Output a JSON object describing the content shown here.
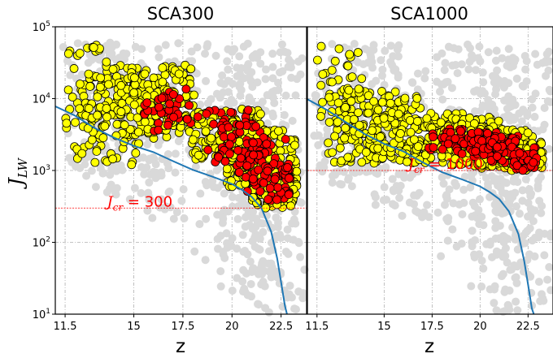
{
  "chart_data": [
    {
      "type": "scatter",
      "title": "SCA300",
      "xlabel": "z",
      "ylabel": "J_LW",
      "ylabel_main": "J",
      "ylabel_sub": "LW",
      "xlim": [
        11,
        23.8
      ],
      "ylim": [
        10,
        100000
      ],
      "yscale": "log",
      "xticks": [
        11.5,
        15,
        17.5,
        20,
        22.5
      ],
      "xtick_labels": [
        "11.5",
        "15",
        "17.5",
        "20",
        "22.5"
      ],
      "yticks": [
        10,
        100,
        1000,
        10000,
        100000
      ],
      "ytick_labels": [
        [
          "10",
          "1"
        ],
        [
          "10",
          "2"
        ],
        [
          "10",
          "3"
        ],
        [
          "10",
          "4"
        ],
        [
          "10",
          "5"
        ]
      ],
      "grid": true,
      "threshold": {
        "value": 300,
        "label_main": "J",
        "label_sub": "cr",
        "label_rest": " = 300",
        "color": "#ff0000"
      },
      "curve": {
        "color": "#1f77b4",
        "x": [
          11.0,
          12.0,
          13.0,
          14.0,
          15.0,
          16.0,
          17.0,
          18.0,
          19.0,
          20.0,
          20.5,
          21.0,
          21.5,
          22.0,
          22.3,
          22.5,
          22.7,
          22.8
        ],
        "y": [
          7800,
          5800,
          3900,
          2850,
          2200,
          1800,
          1350,
          1020,
          820,
          650,
          540,
          430,
          300,
          140,
          60,
          28,
          13,
          10
        ]
      },
      "series": [
        {
          "name": "",
          "role": "all halos",
          "color": "#d9d9d9",
          "x_range": [
            11.3,
            23.8
          ],
          "y_range": [
            10,
            60000
          ],
          "clusters": [
            [
              13.0,
              12000,
              0.18,
              1.35,
              3
            ],
            [
              14.5,
              10000,
              0.18,
              1.5,
              3
            ],
            [
              15.5,
              12000,
              0.18,
              1.6,
              2
            ],
            [
              17.0,
              7000,
              0.18,
              1.6,
              3
            ],
            [
              19.5,
              3500,
              0.2,
              1.8,
              4
            ],
            [
              21.0,
              1500,
              0.2,
              1.9,
              5
            ],
            [
              22.3,
              600,
              0.22,
              1.9,
              5
            ],
            [
              23.2,
              200,
              0.3,
              1.6,
              3
            ],
            [
              12.0,
              25000,
              0.3,
              1.4,
              4
            ]
          ]
        },
        {
          "name": "",
          "role": "selected halos",
          "color": "#ffff00",
          "x_range": [
            11.5,
            23.3
          ],
          "y_range": [
            300,
            60000
          ],
          "clusters": [
            [
              13.5,
              5000,
              0.2,
              0.62,
              2
            ],
            [
              14.5,
              7000,
              0.22,
              0.62,
              2
            ],
            [
              15.5,
              9000,
              0.22,
              0.5,
              2
            ],
            [
              16.5,
              10000,
              0.2,
              0.5,
              3
            ],
            [
              19.7,
              3200,
              0.22,
              0.35,
              4
            ],
            [
              21.5,
              1500,
              0.22,
              0.4,
              5
            ],
            [
              22.3,
              600,
              0.16,
              0.4,
              6
            ],
            [
              12.3,
              15000,
              0.18,
              0.6,
              2
            ]
          ]
        },
        {
          "name": "",
          "role": "atomic-cooling halos",
          "color": "#ff0000",
          "x_range": [
            15.5,
            23.0
          ],
          "y_range": [
            350,
            15000
          ],
          "clusters": [
            [
              16.5,
              8000,
              0.2,
              0.25,
              2
            ],
            [
              17.2,
              6000,
              0.15,
              0.3,
              1
            ],
            [
              19.8,
              3500,
              0.18,
              0.3,
              2
            ],
            [
              20.8,
              2200,
              0.18,
              0.3,
              3
            ],
            [
              21.8,
              1100,
              0.18,
              0.4,
              3
            ],
            [
              22.6,
              600,
              0.12,
              0.35,
              3
            ],
            [
              20.2,
              1200,
              0.15,
              0.3,
              1
            ]
          ]
        }
      ]
    },
    {
      "type": "scatter",
      "title": "SCA1000",
      "xlabel": "z",
      "ylabel": "",
      "xlim": [
        11,
        23.8
      ],
      "ylim": [
        10,
        100000
      ],
      "yscale": "log",
      "xticks": [
        11.5,
        15,
        17.5,
        20,
        22.5
      ],
      "xtick_labels": [
        "11.5",
        "15",
        "17.5",
        "20",
        "22.5"
      ],
      "grid": true,
      "threshold": {
        "value": 1000,
        "label_main": "J",
        "label_sub": "cr",
        "label_rest": " = 1000",
        "color": "#ff0000"
      },
      "curve": {
        "color": "#1f77b4",
        "x": [
          11.0,
          12.0,
          13.0,
          14.0,
          15.0,
          16.0,
          17.0,
          18.0,
          19.0,
          20.0,
          20.5,
          21.0,
          21.5,
          22.0,
          22.3,
          22.5,
          22.7,
          22.8
        ],
        "y": [
          9800,
          7000,
          4700,
          3200,
          2350,
          1850,
          1300,
          950,
          760,
          600,
          500,
          400,
          270,
          130,
          55,
          26,
          12,
          10
        ]
      },
      "series": [
        {
          "name": "",
          "role": "all halos",
          "color": "#d9d9d9",
          "x_range": [
            11.3,
            23.8
          ],
          "y_range": [
            10,
            60000
          ],
          "clusters": [
            [
              13.0,
              12000,
              0.18,
              1.35,
              3
            ],
            [
              14.5,
              10000,
              0.18,
              1.5,
              3
            ],
            [
              15.5,
              12000,
              0.18,
              1.6,
              2
            ],
            [
              17.0,
              7000,
              0.18,
              1.6,
              3
            ],
            [
              19.5,
              3500,
              0.2,
              1.8,
              4
            ],
            [
              21.0,
              1500,
              0.2,
              1.9,
              5
            ],
            [
              22.3,
              600,
              0.22,
              1.9,
              5
            ],
            [
              23.2,
              200,
              0.3,
              1.6,
              3
            ],
            [
              12.0,
              25000,
              0.3,
              1.4,
              4
            ]
          ]
        },
        {
          "name": "",
          "role": "selected halos",
          "color": "#ffff00",
          "x_range": [
            11.5,
            23.3
          ],
          "y_range": [
            1000,
            70000
          ],
          "clusters": [
            [
              13.5,
              4000,
              0.18,
              0.5,
              2
            ],
            [
              14.5,
              4500,
              0.2,
              0.5,
              3
            ],
            [
              15.5,
              4000,
              0.18,
              0.45,
              2
            ],
            [
              17.5,
              2800,
              0.22,
              0.35,
              3
            ],
            [
              19.5,
              2500,
              0.2,
              0.35,
              4
            ],
            [
              21.3,
              1900,
              0.18,
              0.3,
              4
            ],
            [
              22.5,
              1500,
              0.12,
              0.25,
              4
            ],
            [
              12.3,
              15000,
              0.2,
              0.6,
              2
            ]
          ]
        },
        {
          "name": "",
          "role": "atomic-cooling halos",
          "color": "#ff0000",
          "x_range": [
            17.3,
            23.0
          ],
          "y_range": [
            1000,
            6000
          ],
          "clusters": [
            [
              18.3,
              2700,
              0.18,
              0.18,
              2
            ],
            [
              19.6,
              2400,
              0.16,
              0.2,
              3
            ],
            [
              20.8,
              2200,
              0.16,
              0.2,
              3
            ],
            [
              21.8,
              1800,
              0.16,
              0.2,
              3
            ],
            [
              22.4,
              1400,
              0.1,
              0.15,
              2
            ]
          ]
        }
      ]
    }
  ]
}
